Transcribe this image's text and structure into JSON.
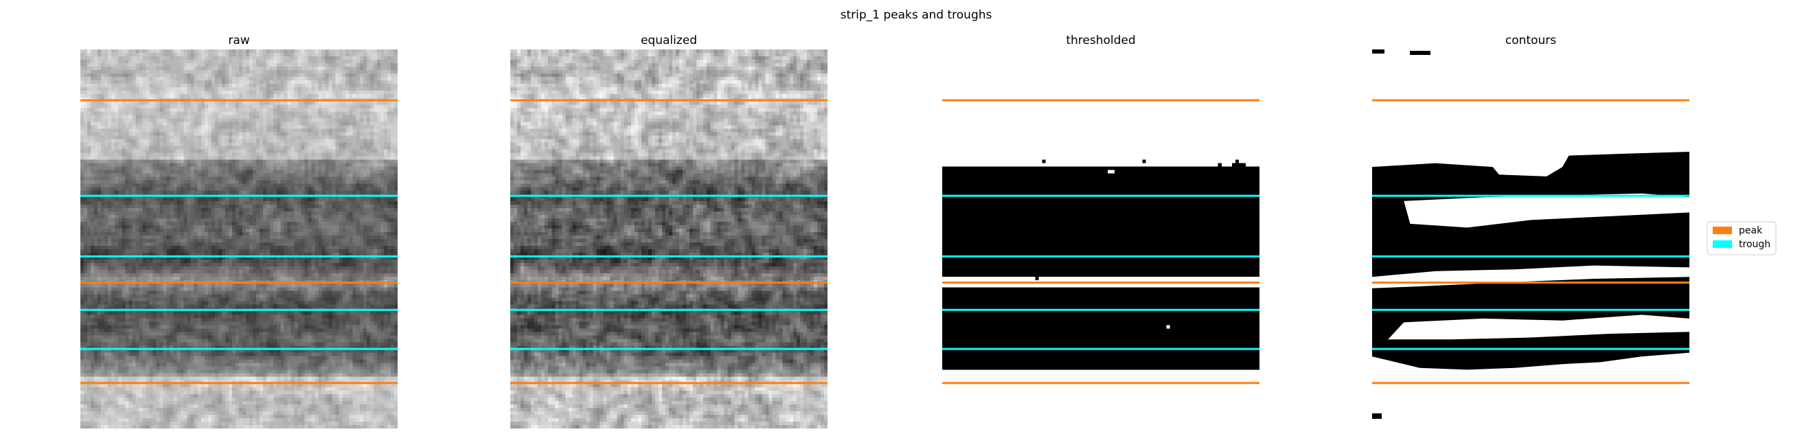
{
  "chart_data": {
    "type": "heatmap",
    "title": "strip_1 peaks and troughs",
    "ylim": [
      0,
      1
    ],
    "panels": [
      {
        "title": "raw",
        "style": "grayscale"
      },
      {
        "title": "equalized",
        "style": "grayscale"
      },
      {
        "title": "thresholded",
        "style": "binary"
      },
      {
        "title": "contours",
        "style": "contours"
      }
    ],
    "peaks": [
      0.134,
      0.615,
      0.88
    ],
    "troughs": [
      0.386,
      0.546,
      0.687,
      0.79
    ],
    "black_bands": [
      [
        0.29,
        0.86
      ]
    ],
    "colors": {
      "peak": "#ff7f0e",
      "trough": "#00ffff"
    },
    "legend": {
      "position": "right",
      "entries": [
        {
          "label": "peak",
          "color": "#ff7f0e"
        },
        {
          "label": "trough",
          "color": "#00ffff"
        }
      ]
    }
  }
}
